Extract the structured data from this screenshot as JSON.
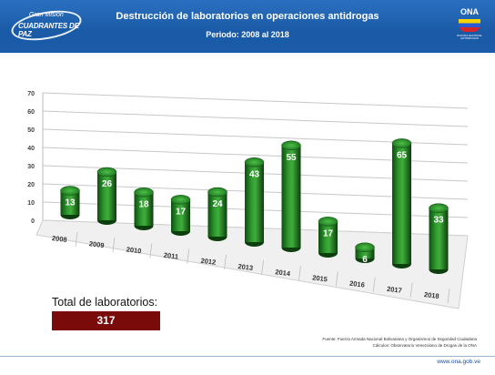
{
  "header": {
    "title": "Destrucción de laboratorios en operaciones antidrogas",
    "subtitle": "Periodo: 2008 al 2018",
    "logo_left": {
      "small": "Gran Misión",
      "big": "CUADRANTES DE PAZ"
    },
    "logo_right": {
      "text": "ONA",
      "tiny": "OFICINA NACIONAL ANTIDROGAS"
    }
  },
  "chart_data": {
    "type": "bar",
    "categories": [
      "2008",
      "2009",
      "2010",
      "2011",
      "2012",
      "2013",
      "2014",
      "2015",
      "2016",
      "2017",
      "2018"
    ],
    "values": [
      13,
      26,
      18,
      17,
      24,
      43,
      55,
      17,
      6,
      65,
      33
    ],
    "yticks": [
      "0",
      "10",
      "20",
      "30",
      "40",
      "50",
      "60",
      "70"
    ],
    "ylim": [
      0,
      70
    ],
    "grid": true,
    "bar_color": "#1f7a1f",
    "data_labels": true
  },
  "total": {
    "label": "Total de laboratorios:",
    "value": "317"
  },
  "source": {
    "line1": "Fuente: Fuerza Armada Nacional Bolivariana y Organismos de Seguridad Ciudadana",
    "line2": "Cálculos: Observatorio Venezolano de Drogas de la ONA"
  },
  "footer": {
    "url": "www.ona.gob.ve"
  }
}
